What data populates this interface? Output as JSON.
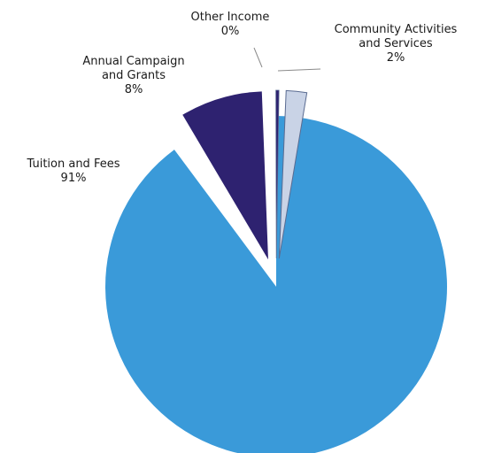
{
  "chart_data": {
    "type": "pie",
    "title": "",
    "slices": [
      {
        "label": "Tuition and Fees",
        "value": 91,
        "value_label": "91%",
        "color": "#3a9ad9",
        "exploded": false
      },
      {
        "label": "Annual Campaign and Grants",
        "value": 8,
        "value_label": "8%",
        "color": "#2e2270",
        "exploded": true
      },
      {
        "label": "Other Income",
        "value": 0.3,
        "value_label": "0%",
        "color": "#2e2270",
        "exploded": true
      },
      {
        "label": "Community Activities and Services",
        "value": 2,
        "value_label": "2%",
        "color": "#c9d3e6",
        "exploded": true
      }
    ],
    "legend": "none"
  },
  "labels": {
    "tuition": {
      "name": "Tuition and Fees",
      "pct": "91%"
    },
    "campaign": {
      "name_line1": "Annual Campaign",
      "name_line2": "and Grants",
      "pct": "8%"
    },
    "other": {
      "name": "Other Income",
      "pct": "0%"
    },
    "community": {
      "name_line1": "Community Activities",
      "name_line2": "and Services",
      "pct": "2%"
    }
  }
}
